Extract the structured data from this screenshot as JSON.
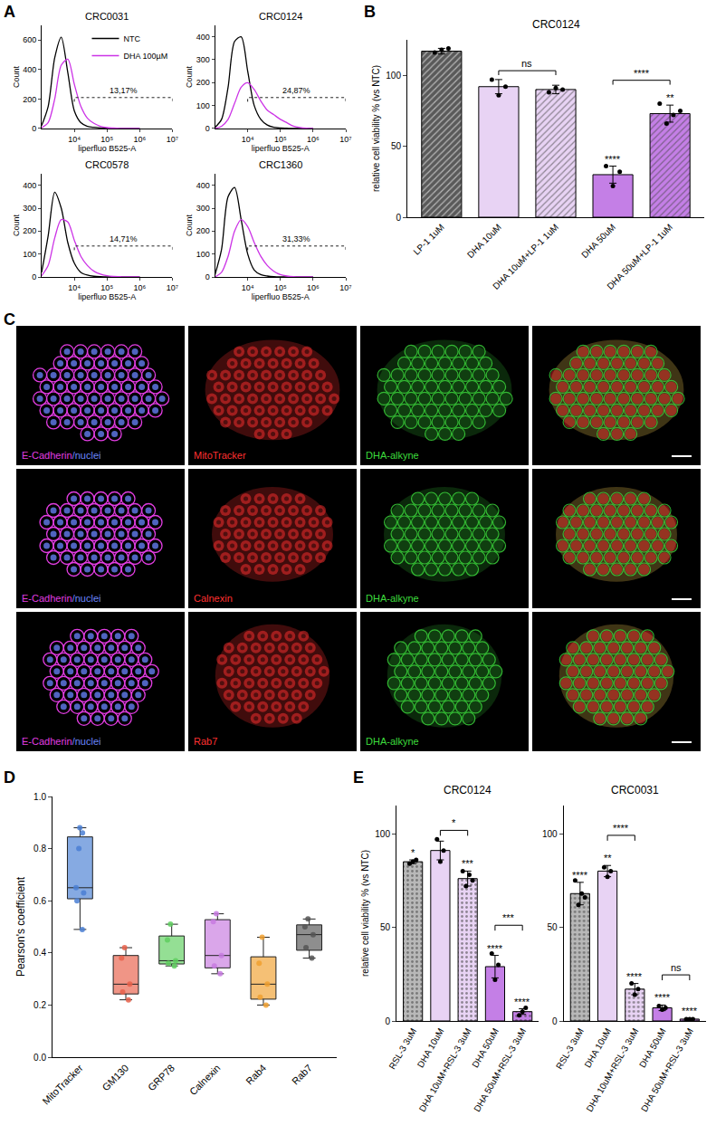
{
  "chart_data": [
    {
      "type": "line",
      "panel": "A",
      "title": "CRC0031",
      "x_label": "liperfluo B525-A",
      "y_label": "Count",
      "log": "x",
      "xlim": [
        1000,
        10000000
      ],
      "xticks": [
        {
          "value": 10000,
          "label": "10⁴"
        },
        {
          "value": 100000,
          "label": "10⁵"
        },
        {
          "value": 1000000,
          "label": "10⁶"
        },
        {
          "value": 10000000,
          "label": "10⁷"
        }
      ],
      "ylim": [
        0,
        700
      ],
      "yticks": [
        0,
        200,
        400,
        600
      ],
      "x": [
        1000,
        1585,
        2512,
        3981,
        6310,
        10000,
        15849,
        25119,
        39811,
        63096,
        100000,
        158489,
        251189,
        398107,
        630957,
        1000000
      ],
      "series": [
        {
          "name": "NTC",
          "color": "#000000",
          "values": [
            20,
            150,
            480,
            620,
            380,
            120,
            40,
            15,
            8,
            4,
            2,
            1,
            0,
            0,
            0,
            0
          ]
        },
        {
          "name": "DHA 100µM",
          "color": "#cc33e6",
          "values": [
            5,
            40,
            200,
            430,
            470,
            300,
            150,
            70,
            35,
            15,
            6,
            3,
            1,
            0,
            0,
            0
          ]
        }
      ],
      "gate": [
        10000,
        10000000
      ],
      "annotations": [
        {
          "text": "13,17%"
        }
      ],
      "legend": "top right"
    },
    {
      "type": "line",
      "panel": "A",
      "title": "CRC0124",
      "x_label": "liperfluo B525-A",
      "y_label": "Count",
      "log": "x",
      "xlim": [
        1000,
        10000000
      ],
      "xticks": [
        {
          "value": 10000,
          "label": "10⁴"
        },
        {
          "value": 100000,
          "label": "10⁵"
        },
        {
          "value": 1000000,
          "label": "10⁶"
        },
        {
          "value": 10000000,
          "label": "10⁷"
        }
      ],
      "ylim": [
        0,
        450
      ],
      "yticks": [
        0,
        100,
        200,
        300,
        400
      ],
      "x": [
        1000,
        1585,
        2512,
        3981,
        6310,
        10000,
        15849,
        25119,
        39811,
        63096,
        100000,
        158489,
        251189,
        398107,
        630957,
        1000000
      ],
      "series": [
        {
          "color": "#000000",
          "values": [
            5,
            40,
            180,
            380,
            400,
            250,
            100,
            40,
            15,
            5,
            2,
            1,
            0,
            0,
            0,
            0
          ]
        },
        {
          "color": "#cc33e6",
          "values": [
            0,
            10,
            40,
            110,
            180,
            200,
            170,
            120,
            80,
            60,
            40,
            25,
            10,
            4,
            1,
            0
          ]
        }
      ],
      "gate": [
        10000,
        10000000
      ],
      "annotations": [
        {
          "text": "24,87%"
        }
      ]
    },
    {
      "type": "line",
      "panel": "A",
      "title": "CRC0578",
      "x_label": "liperfluo B525-A",
      "y_label": "Count",
      "log": "x",
      "xlim": [
        1000,
        10000000
      ],
      "xticks": [
        {
          "value": 10000,
          "label": "10⁴"
        },
        {
          "value": 100000,
          "label": "10⁵"
        },
        {
          "value": 1000000,
          "label": "10⁶"
        },
        {
          "value": 10000000,
          "label": "10⁷"
        }
      ],
      "ylim": [
        0,
        450
      ],
      "yticks": [
        0,
        100,
        200,
        300,
        400
      ],
      "x": [
        1000,
        1585,
        2512,
        3981,
        6310,
        10000,
        15849,
        25119,
        39811,
        63096,
        100000,
        158489,
        251189,
        398107,
        630957,
        1000000
      ],
      "series": [
        {
          "color": "#000000",
          "values": [
            20,
            180,
            370,
            300,
            150,
            60,
            20,
            8,
            3,
            1,
            0,
            0,
            0,
            0,
            0,
            0
          ]
        },
        {
          "color": "#cc33e6",
          "values": [
            5,
            50,
            170,
            250,
            240,
            160,
            90,
            50,
            25,
            12,
            5,
            2,
            1,
            0,
            0,
            0
          ]
        }
      ],
      "gate": [
        10000,
        10000000
      ],
      "annotations": [
        {
          "text": "14,71%"
        }
      ]
    },
    {
      "type": "line",
      "panel": "A",
      "title": "CRC1360",
      "x_label": "liperfluo B525-A",
      "y_label": "Count",
      "log": "x",
      "xlim": [
        1000,
        10000000
      ],
      "xticks": [
        {
          "value": 10000,
          "label": "10⁴"
        },
        {
          "value": 100000,
          "label": "10⁵"
        },
        {
          "value": 1000000,
          "label": "10⁶"
        },
        {
          "value": 10000000,
          "label": "10⁷"
        }
      ],
      "ylim": [
        0,
        450
      ],
      "yticks": [
        0,
        100,
        200,
        300,
        400
      ],
      "x": [
        1000,
        1585,
        2512,
        3981,
        6310,
        10000,
        15849,
        25119,
        39811,
        63096,
        100000,
        158489,
        251189,
        398107,
        630957,
        1000000
      ],
      "series": [
        {
          "color": "#000000",
          "values": [
            10,
            120,
            350,
            390,
            250,
            100,
            30,
            10,
            4,
            1,
            0,
            0,
            0,
            0,
            0,
            0
          ]
        },
        {
          "color": "#cc33e6",
          "values": [
            0,
            20,
            90,
            200,
            250,
            220,
            150,
            90,
            50,
            25,
            10,
            4,
            1,
            0,
            0,
            0
          ]
        }
      ],
      "gate": [
        10000,
        10000000
      ],
      "annotations": [
        {
          "text": "31,33%"
        }
      ]
    },
    {
      "type": "bar",
      "panel": "B",
      "title": "CRC0124",
      "y_label": "relative cell viability % (vs NTC)",
      "categories": [
        "LP-1 1uM",
        "DHA 10uM",
        "DHA 10uM+LP-1 1uM",
        "DHA 50uM",
        "DHA 50uM+LP-1 1uM"
      ],
      "values": [
        117,
        92,
        90,
        30,
        73
      ],
      "errors": [
        2,
        5,
        3,
        6,
        6
      ],
      "points": [
        [
          116,
          118,
          119
        ],
        [
          97,
          86,
          92
        ],
        [
          88,
          91,
          90
        ],
        [
          36,
          22,
          32
        ],
        [
          80,
          66,
          72,
          75
        ]
      ],
      "colors": [
        "#5a5a5a",
        "#e8d3f4",
        "#e8d3f4",
        "#c47fe6",
        "#c47fe6"
      ],
      "marker": "hatched",
      "ylim": [
        0,
        125
      ],
      "yticks": [
        0,
        50,
        100
      ],
      "annotations": [
        {
          "category": "DHA 50uM",
          "text": "****"
        },
        {
          "category": "DHA 50uM+LP-1 1uM",
          "text": "**"
        }
      ],
      "brackets": [
        {
          "from": "DHA 10uM",
          "to": "DHA 10uM+LP-1 1uM",
          "text": "ns"
        },
        {
          "from": "DHA 50uM",
          "to": "DHA 50uM+LP-1 1uM",
          "text": "****"
        }
      ]
    },
    {
      "type": "box",
      "panel": "D",
      "y_label": "Pearson's coefficient",
      "categories": [
        "MitoTracker",
        "GM130",
        "GRP78",
        "Calnexin",
        "Rab4",
        "Rab7"
      ],
      "points": [
        [
          0.49,
          0.6,
          0.63,
          0.65,
          0.8,
          0.86,
          0.88
        ],
        [
          0.22,
          0.25,
          0.28,
          0.38,
          0.42
        ],
        [
          0.35,
          0.36,
          0.37,
          0.45,
          0.51
        ],
        [
          0.32,
          0.35,
          0.39,
          0.52,
          0.55
        ],
        [
          0.2,
          0.23,
          0.28,
          0.36,
          0.46
        ],
        [
          0.38,
          0.42,
          0.47,
          0.5,
          0.53
        ]
      ],
      "colors": [
        "#4a7fd4",
        "#e8604a",
        "#5fcf5f",
        "#c77ae0",
        "#f0a030",
        "#555555"
      ],
      "ylim": [
        0,
        1
      ],
      "yticks": [
        {
          "value": 0,
          "label": "0.0"
        },
        {
          "value": 0.2,
          "label": "0.2"
        },
        {
          "value": 0.4,
          "label": "0.4"
        },
        {
          "value": 0.6,
          "label": "0.6"
        },
        {
          "value": 0.8,
          "label": "0.8"
        },
        {
          "value": 1,
          "label": "1.0"
        }
      ]
    },
    {
      "type": "bar",
      "panel": "E",
      "title": "CRC0124",
      "y_label": "relative cell viability % (vs NTC)",
      "categories": [
        "RSL-3 3uM",
        "DHA 10uM",
        "DHA 10uM+RSL-3 3uM",
        "DHA 50uM",
        "DHA 50uM+RSL-3 3uM"
      ],
      "values": [
        85,
        91,
        76,
        29,
        5
      ],
      "errors": [
        1,
        5,
        4,
        6,
        1.5
      ],
      "points": [
        [
          84,
          85,
          86
        ],
        [
          97,
          85,
          91
        ],
        [
          80,
          72,
          78,
          75
        ],
        [
          36,
          22,
          30
        ],
        [
          3,
          5,
          7
        ]
      ],
      "colors": [
        "#b8b8b8",
        "#e8d3f4",
        "#e8d3f4",
        "#c47fe6",
        "#c47fe6"
      ],
      "marker": "dotted",
      "ylim": [
        0,
        115
      ],
      "yticks": [
        0,
        50,
        100
      ],
      "annotations": [
        {
          "category": "RSL-3 3uM",
          "text": "*"
        },
        {
          "category": "DHA 10uM+RSL-3 3uM",
          "text": "***"
        },
        {
          "category": "DHA 50uM",
          "text": "****"
        },
        {
          "category": "DHA 50uM+RSL-3 3uM",
          "text": "****"
        }
      ],
      "brackets": [
        {
          "from": "DHA 10uM",
          "to": "DHA 10uM+RSL-3 3uM",
          "text": "*"
        },
        {
          "from": "DHA 50uM",
          "to": "DHA 50uM+RSL-3 3uM",
          "text": "***"
        }
      ]
    },
    {
      "type": "bar",
      "panel": "E",
      "title": "CRC0031",
      "categories": [
        "RSL-3 3uM",
        "DHA 10uM",
        "DHA 10uM+RSL-3 3uM",
        "DHA 50uM",
        "DHA 50uM+RSL-3 3uM"
      ],
      "values": [
        68,
        80,
        17,
        7,
        1
      ],
      "errors": [
        6,
        3,
        3,
        1.5,
        0.3
      ],
      "points": [
        [
          75,
          62,
          68,
          66
        ],
        [
          82,
          77,
          80
        ],
        [
          20,
          14,
          17
        ],
        [
          8,
          6,
          7
        ],
        [
          1,
          1,
          1
        ]
      ],
      "colors": [
        "#b8b8b8",
        "#e8d3f4",
        "#e8d3f4",
        "#c47fe6",
        "#c47fe6"
      ],
      "marker": "dotted",
      "ylim": [
        0,
        115
      ],
      "yticks": [
        0,
        50,
        100
      ],
      "annotations": [
        {
          "category": "RSL-3 3uM",
          "text": "****"
        },
        {
          "category": "DHA 10uM",
          "text": "**"
        },
        {
          "category": "DHA 10uM+RSL-3 3uM",
          "text": "****"
        },
        {
          "category": "DHA 50uM",
          "text": "****"
        },
        {
          "category": "DHA 50uM+RSL-3 3uM",
          "text": "****"
        }
      ],
      "brackets": [
        {
          "from": "DHA 10uM",
          "to": "DHA 10uM+RSL-3 3uM",
          "text": "****"
        },
        {
          "from": "DHA 50uM",
          "to": "DHA 50uM+RSL-3 3uM",
          "text": "ns"
        }
      ]
    }
  ],
  "micrographs": {
    "panel": "C",
    "rows": [
      {
        "labels": [
          [
            {
              "text": "E-Cadherin",
              "color": "#e23de2"
            },
            {
              "text": "/nuclei",
              "color": "#6a86ff"
            }
          ],
          [
            {
              "text": "MitoTracker",
              "color": "#ff3030"
            }
          ],
          [
            {
              "text": "DHA-alkyne",
              "color": "#3ddc3d"
            }
          ]
        ]
      },
      {
        "labels": [
          [
            {
              "text": "E-Cadherin",
              "color": "#e23de2"
            },
            {
              "text": "/nuclei",
              "color": "#6a86ff"
            }
          ],
          [
            {
              "text": "Calnexin",
              "color": "#ff3030"
            }
          ],
          [
            {
              "text": "DHA-alkyne",
              "color": "#3ddc3d"
            }
          ]
        ]
      },
      {
        "labels": [
          [
            {
              "text": "E-Cadherin",
              "color": "#e23de2"
            },
            {
              "text": "/nuclei",
              "color": "#6a86ff"
            }
          ],
          [
            {
              "text": "Rab7",
              "color": "#ff3030"
            }
          ],
          [
            {
              "text": "DHA-alkyne",
              "color": "#3ddc3d"
            }
          ]
        ]
      }
    ]
  }
}
